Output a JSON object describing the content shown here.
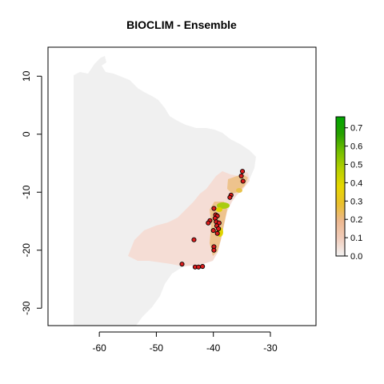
{
  "title": "BIOCLIM - Ensemble",
  "map": {
    "xlim": [
      -69,
      -22
    ],
    "ylim": [
      -33,
      15
    ],
    "x_ticks": [
      -60,
      -50,
      -40,
      -30
    ],
    "y_ticks": [
      10,
      0,
      -10,
      -20,
      -30
    ],
    "x_tick_labels": [
      "-60",
      "-50",
      "-40",
      "-30"
    ],
    "y_tick_labels": [
      "10",
      "0",
      "-10",
      "-20",
      "-30"
    ],
    "land_color": "#f0f0f0",
    "low_suitability_color": "#f5ddd5"
  },
  "legend": {
    "ticks": [
      0.0,
      0.1,
      0.2,
      0.3,
      0.4,
      0.5,
      0.6,
      0.7
    ],
    "labels": [
      "0.0",
      "0.1",
      "0.2",
      "0.3",
      "0.4",
      "0.5",
      "0.6",
      "0.7"
    ],
    "range": [
      0,
      0.76
    ],
    "gradient_colors": [
      "#f2f2f2",
      "#f1cdbc",
      "#edb890",
      "#eac02c",
      "#e6d700",
      "#b6d000",
      "#74bf00",
      "#27a000",
      "#00a600"
    ]
  },
  "occurrences": [
    {
      "lon": -34.9,
      "lat": -6.4
    },
    {
      "lon": -35.1,
      "lat": -7.2
    },
    {
      "lon": -34.8,
      "lat": -8.1
    },
    {
      "lon": -36.9,
      "lat": -10.5
    },
    {
      "lon": -37.1,
      "lat": -10.9
    },
    {
      "lon": -39.9,
      "lat": -12.8
    },
    {
      "lon": -39.6,
      "lat": -13.9
    },
    {
      "lon": -39.3,
      "lat": -14.1
    },
    {
      "lon": -39.7,
      "lat": -14.5
    },
    {
      "lon": -39.5,
      "lat": -15.1
    },
    {
      "lon": -39.0,
      "lat": -15.3
    },
    {
      "lon": -39.4,
      "lat": -15.8
    },
    {
      "lon": -39.1,
      "lat": -16.3
    },
    {
      "lon": -40.0,
      "lat": -16.6
    },
    {
      "lon": -40.6,
      "lat": -14.9
    },
    {
      "lon": -39.3,
      "lat": -17.1
    },
    {
      "lon": -40.9,
      "lat": -15.3
    },
    {
      "lon": -43.4,
      "lat": -18.2
    },
    {
      "lon": -39.9,
      "lat": -19.4
    },
    {
      "lon": -39.9,
      "lat": -20.0
    },
    {
      "lon": -45.5,
      "lat": -22.4
    },
    {
      "lon": -43.2,
      "lat": -22.9
    },
    {
      "lon": -42.6,
      "lat": -22.9
    },
    {
      "lon": -41.9,
      "lat": -22.8
    }
  ]
}
